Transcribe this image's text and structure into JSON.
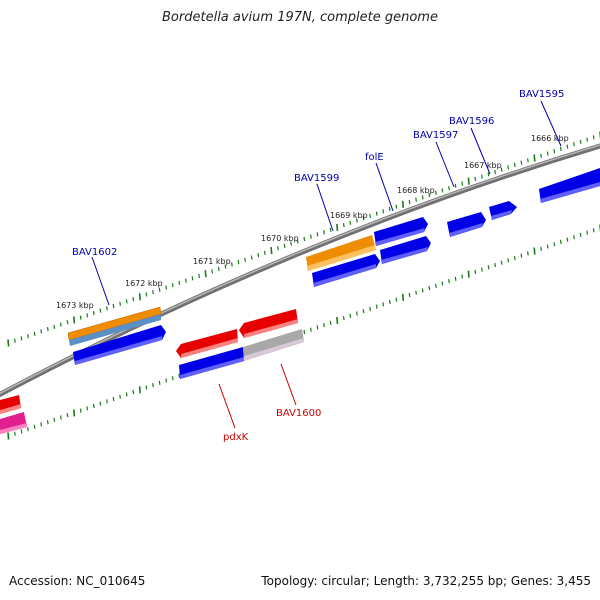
{
  "title": "Bordetella avium 197N, complete genome",
  "footer": {
    "accession": "Accession: NC_010645",
    "summary": "Topology: circular; Length: 3,732,255 bp; Genes: 3,455"
  },
  "colors": {
    "backbone": "#808080",
    "forward_gene": "#0000e6",
    "reverse_gene": "#e60000",
    "orange_feature": "#f08c00",
    "gray_feature": "#a8a8a8",
    "pink_feature": "#e0208c",
    "tick_mark": "#1a7a1a",
    "forward_label": "#0000aa",
    "reverse_label": "#cc0000"
  },
  "scale_ticks": [
    "1673 kbp",
    "1672 kbp",
    "1671 kbp",
    "1670 kbp",
    "1669 kbp",
    "1668 kbp",
    "1667 kbp",
    "1666 kbp"
  ],
  "gene_labels": {
    "forward": [
      "BAV1602",
      "BAV1599",
      "folE",
      "BAV1597",
      "BAV1596",
      "BAV1595"
    ],
    "reverse": [
      "pdxK",
      "BAV1600"
    ]
  }
}
